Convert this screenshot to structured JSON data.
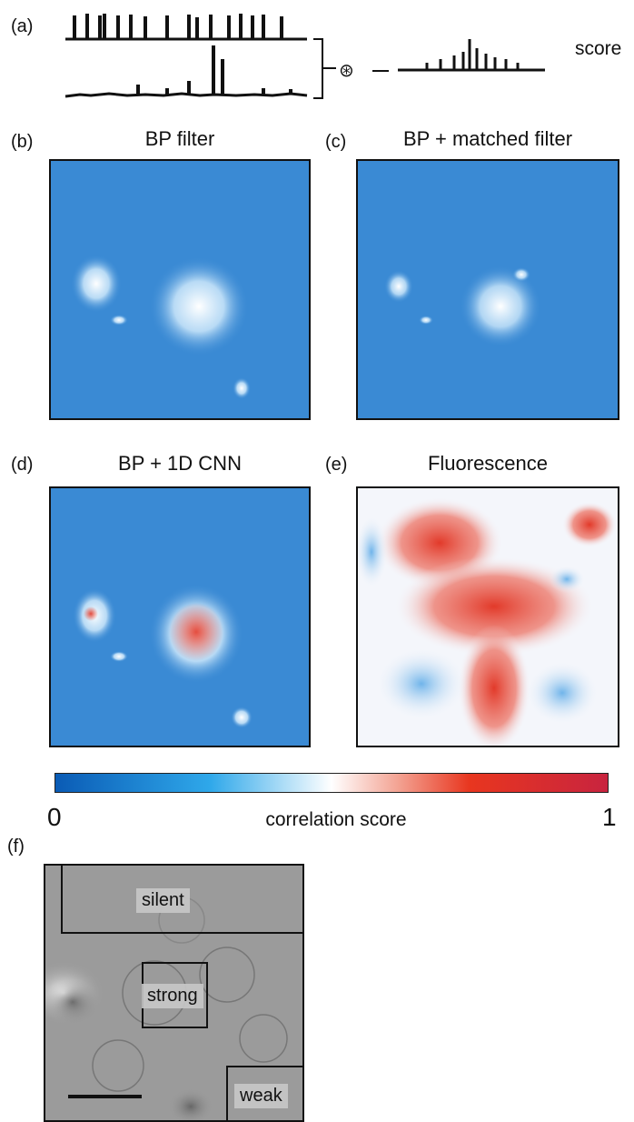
{
  "panels": {
    "a": {
      "letter": "(a)",
      "operator": "⊛",
      "scale_label": "score"
    },
    "b": {
      "letter": "(b)",
      "title": "BP filter"
    },
    "c": {
      "letter": "(c)",
      "title": "BP + matched filter"
    },
    "d": {
      "letter": "(d)",
      "title": "BP + 1D CNN"
    },
    "e": {
      "letter": "(e)",
      "title": "Fluorescence"
    },
    "f": {
      "letter": "(f)",
      "rois": {
        "silent": "silent",
        "strong": "strong",
        "weak": "weak"
      }
    }
  },
  "colorbar": {
    "min_label": "0",
    "max_label": "1",
    "label": "correlation score",
    "colors": [
      "#0a5bb5",
      "#2fa8ea",
      "#ffffff",
      "#e8361f",
      "#c8243f"
    ]
  }
}
